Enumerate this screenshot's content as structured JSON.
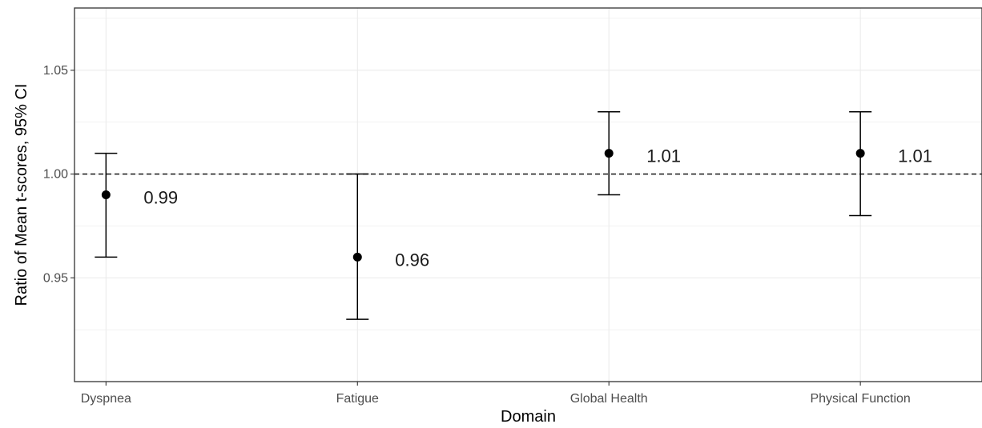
{
  "chart_data": {
    "type": "scatter",
    "title": "",
    "xlabel": "Domain",
    "ylabel": "Ratio of Mean t-scores, 95% CI",
    "categories": [
      "Dyspnea",
      "Fatigue",
      "Global Health",
      "Physical Function"
    ],
    "series": [
      {
        "values": [
          0.99,
          0.96,
          1.01,
          1.01
        ],
        "ci_lower": [
          0.96,
          0.93,
          0.99,
          0.98
        ],
        "ci_upper": [
          1.01,
          1.0,
          1.03,
          1.03
        ],
        "labels": [
          "0.99",
          "0.96",
          "1.01",
          "1.01"
        ]
      }
    ],
    "reference_line": {
      "y": 1.0,
      "style": "dashed"
    },
    "ylim": [
      0.9,
      1.08
    ],
    "yticks": [
      0.95,
      1.0,
      1.05
    ],
    "ytick_labels": [
      "0.95",
      "1.00",
      "1.05"
    ],
    "grid": true,
    "legend": "none",
    "colors": {
      "points": "#000000",
      "grid": "#ebebeb",
      "panel_border": "#333333"
    }
  }
}
